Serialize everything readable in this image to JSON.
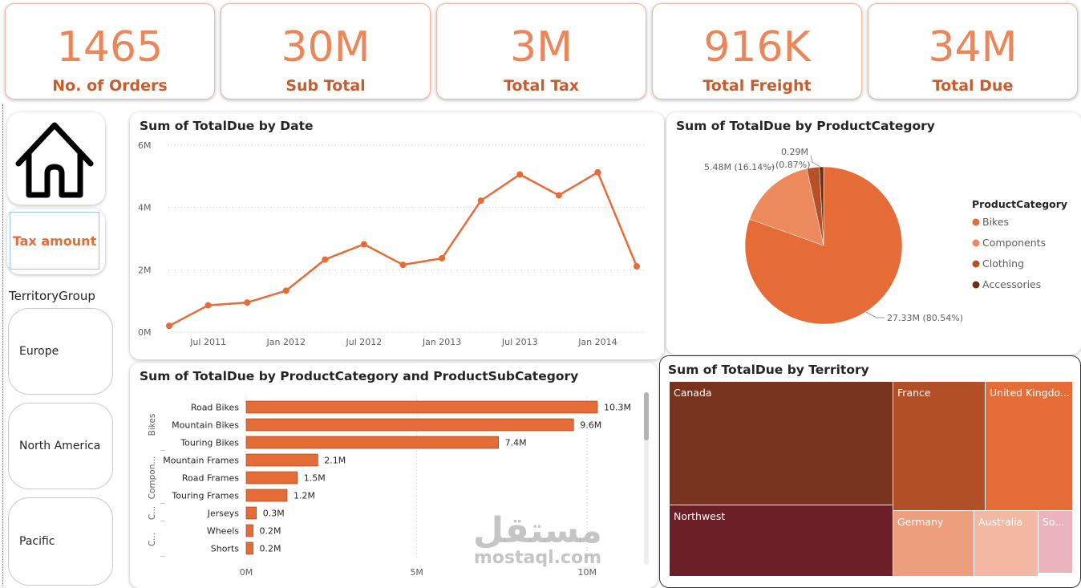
{
  "kpis": [
    {
      "value": "1465",
      "label": "No. of Orders"
    },
    {
      "value": "30M",
      "label": "Sub Total"
    },
    {
      "value": "3M",
      "label": "Total Tax"
    },
    {
      "value": "916K",
      "label": "Total Freight"
    },
    {
      "value": "34M",
      "label": "Total Due"
    }
  ],
  "nav": {
    "tax_button": "Tax amount",
    "slicer_title": "TerritoryGroup",
    "slicer_items": [
      "Europe",
      "North America",
      "Pacific"
    ]
  },
  "colors": {
    "accent": "#e66c37",
    "kpi_value": "#e9875b",
    "kpi_label": "#c65d2e"
  },
  "icons": {
    "home": "home-icon"
  },
  "watermark": {
    "arabic": "مستقل",
    "latin": "mostaql.com"
  },
  "chart_data": [
    {
      "type": "line",
      "title": "Sum of TotalDue by Date",
      "x_tick_labels": [
        "Jul 2011",
        "Jan 2012",
        "Jul 2012",
        "Jan 2013",
        "Jul 2013",
        "Jan 2014"
      ],
      "y_tick_labels": [
        "0M",
        "2M",
        "4M",
        "6M"
      ],
      "ylim": [
        0,
        6
      ],
      "unit": "M",
      "x": [
        "2011-05",
        "2011-07",
        "2011-10",
        "2012-01",
        "2012-04",
        "2012-07",
        "2012-10",
        "2013-01",
        "2013-04",
        "2013-07",
        "2013-10",
        "2014-01",
        "2014-04"
      ],
      "values": [
        0.2,
        0.86,
        0.95,
        1.33,
        2.33,
        2.82,
        2.16,
        2.37,
        4.22,
        5.06,
        4.39,
        5.13,
        2.11
      ],
      "grid": true
    },
    {
      "type": "pie",
      "title": "Sum of TotalDue by ProductCategory",
      "legend_title": "ProductCategory",
      "categories": [
        "Bikes",
        "Components",
        "Clothing",
        "Accessories"
      ],
      "values": [
        27.33,
        5.48,
        0.87,
        0.29
      ],
      "percents": [
        80.54,
        16.14,
        2.56,
        0.87
      ],
      "data_labels": [
        "27.33M (80.54%)",
        "5.48M (16.14%)",
        "0.29M",
        "(0.87%)"
      ],
      "colors": [
        "#e66c37",
        "#ec8a5e",
        "#b65026",
        "#6d2e13"
      ],
      "legend": "right"
    },
    {
      "type": "bar",
      "orientation": "horizontal",
      "title": "Sum of TotalDue by ProductCategory and ProductSubCategory",
      "groups": [
        "Bikes",
        "Compon...",
        "C...",
        "C..."
      ],
      "categories": [
        "Road Bikes",
        "Mountain Bikes",
        "Touring Bikes",
        "Mountain Frames",
        "Road Frames",
        "Touring Frames",
        "Jerseys",
        "Wheels",
        "Shorts"
      ],
      "values": [
        10.3,
        9.6,
        7.4,
        2.1,
        1.5,
        1.2,
        0.3,
        0.2,
        0.2
      ],
      "data_labels": [
        "10.3M",
        "9.6M",
        "7.4M",
        "2.1M",
        "1.5M",
        "1.2M",
        "0.3M",
        "0.2M",
        "0.2M"
      ],
      "x_tick_labels": [
        "0M",
        "5M",
        "10M"
      ],
      "xlim": [
        0,
        10.3
      ],
      "color": "#e66c37"
    },
    {
      "type": "treemap",
      "title": "Sum of TotalDue by Territory",
      "items": [
        {
          "label": "Canada",
          "color": "#77331e",
          "text": "#ffffff"
        },
        {
          "label": "Northwest",
          "color": "#6b1f27",
          "text": "#ffffff"
        },
        {
          "label": "France",
          "color": "#b34f26",
          "text": "#ffffff"
        },
        {
          "label": "United Kingdo...",
          "color": "#e66c37",
          "text": "#ffffff"
        },
        {
          "label": "Germany",
          "color": "#ec9e7d",
          "text": "#ffffff"
        },
        {
          "label": "Australia",
          "color": "#f2b8a2",
          "text": "#ffffff"
        },
        {
          "label": "So...",
          "color": "#ebb3bb",
          "text": "#ffffff"
        }
      ]
    }
  ]
}
